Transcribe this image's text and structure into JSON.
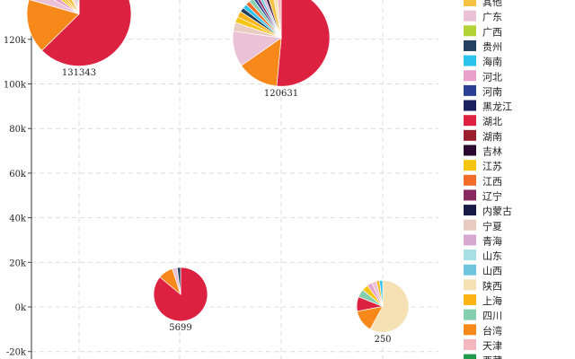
{
  "chart_data": {
    "type": "scatter",
    "subtype": "pie-bubbles",
    "title": "",
    "xlabel": "",
    "ylabel": "",
    "x_tick_labels": [],
    "y_tick_labels": [
      "-20k",
      "0k",
      "20k",
      "40k",
      "60k",
      "80k",
      "100k",
      "120k"
    ],
    "ylim": [
      -20000,
      140000
    ],
    "grid": true,
    "legend_position": "right",
    "series": [
      {
        "name": "其他",
        "color": "#F5C242"
      },
      {
        "name": "广东",
        "color": "#EBC1D6"
      },
      {
        "name": "广西",
        "color": "#B2D235"
      },
      {
        "name": "贵州",
        "color": "#22405F"
      },
      {
        "name": "海南",
        "color": "#2AC3EE"
      },
      {
        "name": "河北",
        "color": "#E8A0C8"
      },
      {
        "name": "河南",
        "color": "#2B3F94"
      },
      {
        "name": "黑龙江",
        "color": "#1B1F5E"
      },
      {
        "name": "湖北",
        "color": "#DC2240"
      },
      {
        "name": "湖南",
        "color": "#9B1E2E"
      },
      {
        "name": "吉林",
        "color": "#2A0A2E"
      },
      {
        "name": "江苏",
        "color": "#F5C512"
      },
      {
        "name": "江西",
        "color": "#F26B29"
      },
      {
        "name": "辽宁",
        "color": "#872A5F"
      },
      {
        "name": "内蒙古",
        "color": "#171A45"
      },
      {
        "name": "宁夏",
        "color": "#E8CBC1"
      },
      {
        "name": "青海",
        "color": "#D7A9D2"
      },
      {
        "name": "山东",
        "color": "#A8DEE5"
      },
      {
        "name": "山西",
        "color": "#6DC5DD"
      },
      {
        "name": "陕西",
        "color": "#F5E1B4"
      },
      {
        "name": "上海",
        "color": "#FBB316"
      },
      {
        "name": "四川",
        "color": "#85CFAE"
      },
      {
        "name": "台湾",
        "color": "#F7891A"
      },
      {
        "name": "天津",
        "color": "#F4B7C0"
      },
      {
        "name": "西藏",
        "color": "#1E9A4C"
      }
    ],
    "points": [
      {
        "label": "131343",
        "y": 131343,
        "slices": [
          {
            "name": "湖北",
            "value": 52
          },
          {
            "name": "台湾",
            "value": 14
          },
          {
            "name": "广东",
            "value": 3
          },
          {
            "name": "河北",
            "value": 2
          },
          {
            "name": "江苏",
            "value": 1.5
          },
          {
            "name": "上海",
            "value": 1.5
          },
          {
            "name": "其他",
            "value": 3
          },
          {
            "name": "陕西",
            "value": 2
          },
          {
            "name": "天津",
            "value": 2
          },
          {
            "name": "海南",
            "value": 1
          },
          {
            "name": "宁夏",
            "value": 1
          }
        ]
      },
      {
        "label": "120631",
        "y": 120631,
        "slices": [
          {
            "name": "湖北",
            "value": 52
          },
          {
            "name": "台湾",
            "value": 14
          },
          {
            "name": "广东",
            "value": 12
          },
          {
            "name": "宁夏",
            "value": 3
          },
          {
            "name": "江苏",
            "value": 2
          },
          {
            "name": "上海",
            "value": 2
          },
          {
            "name": "贵州",
            "value": 1.5
          },
          {
            "name": "海南",
            "value": 1.5
          },
          {
            "name": "江西",
            "value": 1.5
          },
          {
            "name": "四川",
            "value": 1.5
          },
          {
            "name": "河南",
            "value": 1
          },
          {
            "name": "辽宁",
            "value": 1
          },
          {
            "name": "山西",
            "value": 1
          },
          {
            "name": "青海",
            "value": 1
          },
          {
            "name": "吉林",
            "value": 1
          },
          {
            "name": "其他",
            "value": 2
          },
          {
            "name": "陕西",
            "value": 1.5
          },
          {
            "name": "天津",
            "value": 1.5
          }
        ]
      },
      {
        "label": "5699",
        "y": 5699,
        "slices": [
          {
            "name": "湖北",
            "value": 86
          },
          {
            "name": "台湾",
            "value": 9
          },
          {
            "name": "广东",
            "value": 3
          },
          {
            "name": "贵州",
            "value": 2
          }
        ]
      },
      {
        "label": "250",
        "y": 250,
        "slices": [
          {
            "name": "陕西",
            "value": 58
          },
          {
            "name": "台湾",
            "value": 14
          },
          {
            "name": "湖北",
            "value": 9
          },
          {
            "name": "四川",
            "value": 5
          },
          {
            "name": "江苏",
            "value": 4
          },
          {
            "name": "河北",
            "value": 3
          },
          {
            "name": "广东",
            "value": 3
          },
          {
            "name": "上海",
            "value": 2
          },
          {
            "name": "海南",
            "value": 2
          }
        ]
      }
    ]
  }
}
